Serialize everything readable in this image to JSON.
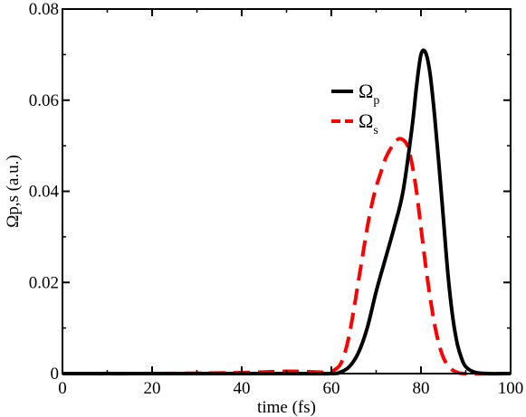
{
  "chart_data": {
    "type": "line",
    "xlabel": "time (fs)",
    "ylabel": "Ωp,s (a.u.)",
    "xlim": [
      0,
      100
    ],
    "ylim": [
      0,
      0.08
    ],
    "x_ticks": [
      "0",
      "20",
      "40",
      "60",
      "80",
      "100"
    ],
    "y_ticks": [
      "0",
      "0.02",
      "0.04",
      "0.06",
      "0.08"
    ],
    "grid": false,
    "legend": "upper-center-right",
    "series": [
      {
        "name": "Ωp",
        "legend_base": "Ω",
        "legend_sub": "p",
        "color": "#000000",
        "style": "solid",
        "x": [
          0,
          50,
          60,
          62,
          64,
          66,
          68,
          70,
          72,
          74,
          76,
          78,
          79,
          80,
          81,
          82,
          83,
          84,
          85,
          86,
          87,
          88,
          89,
          90,
          92,
          95,
          100
        ],
        "y": [
          0,
          0,
          0,
          0.0003,
          0.0015,
          0.0045,
          0.01,
          0.018,
          0.025,
          0.032,
          0.04,
          0.054,
          0.063,
          0.07,
          0.0705,
          0.066,
          0.057,
          0.046,
          0.034,
          0.022,
          0.013,
          0.007,
          0.0035,
          0.0015,
          0.0003,
          0,
          0
        ]
      },
      {
        "name": "Ωs",
        "legend_base": "Ω",
        "legend_sub": "s",
        "color": "#ff0000",
        "style": "dashed",
        "x": [
          0,
          20,
          40,
          50,
          55,
          58,
          60,
          61,
          62,
          63,
          64,
          65,
          66,
          67,
          68,
          69,
          70,
          71,
          72,
          73,
          74,
          75,
          76,
          77,
          78,
          79,
          80,
          81,
          82,
          83,
          84,
          85,
          86,
          87,
          88,
          90,
          100
        ],
        "y": [
          0,
          0,
          0.0002,
          0.0005,
          0.0004,
          0.0003,
          0.0005,
          0.001,
          0.002,
          0.0045,
          0.0085,
          0.014,
          0.02,
          0.026,
          0.032,
          0.037,
          0.041,
          0.044,
          0.047,
          0.049,
          0.0505,
          0.0515,
          0.0513,
          0.05,
          0.046,
          0.04,
          0.032,
          0.024,
          0.017,
          0.011,
          0.0065,
          0.0035,
          0.0018,
          0.0008,
          0.0003,
          0,
          0
        ]
      }
    ]
  }
}
